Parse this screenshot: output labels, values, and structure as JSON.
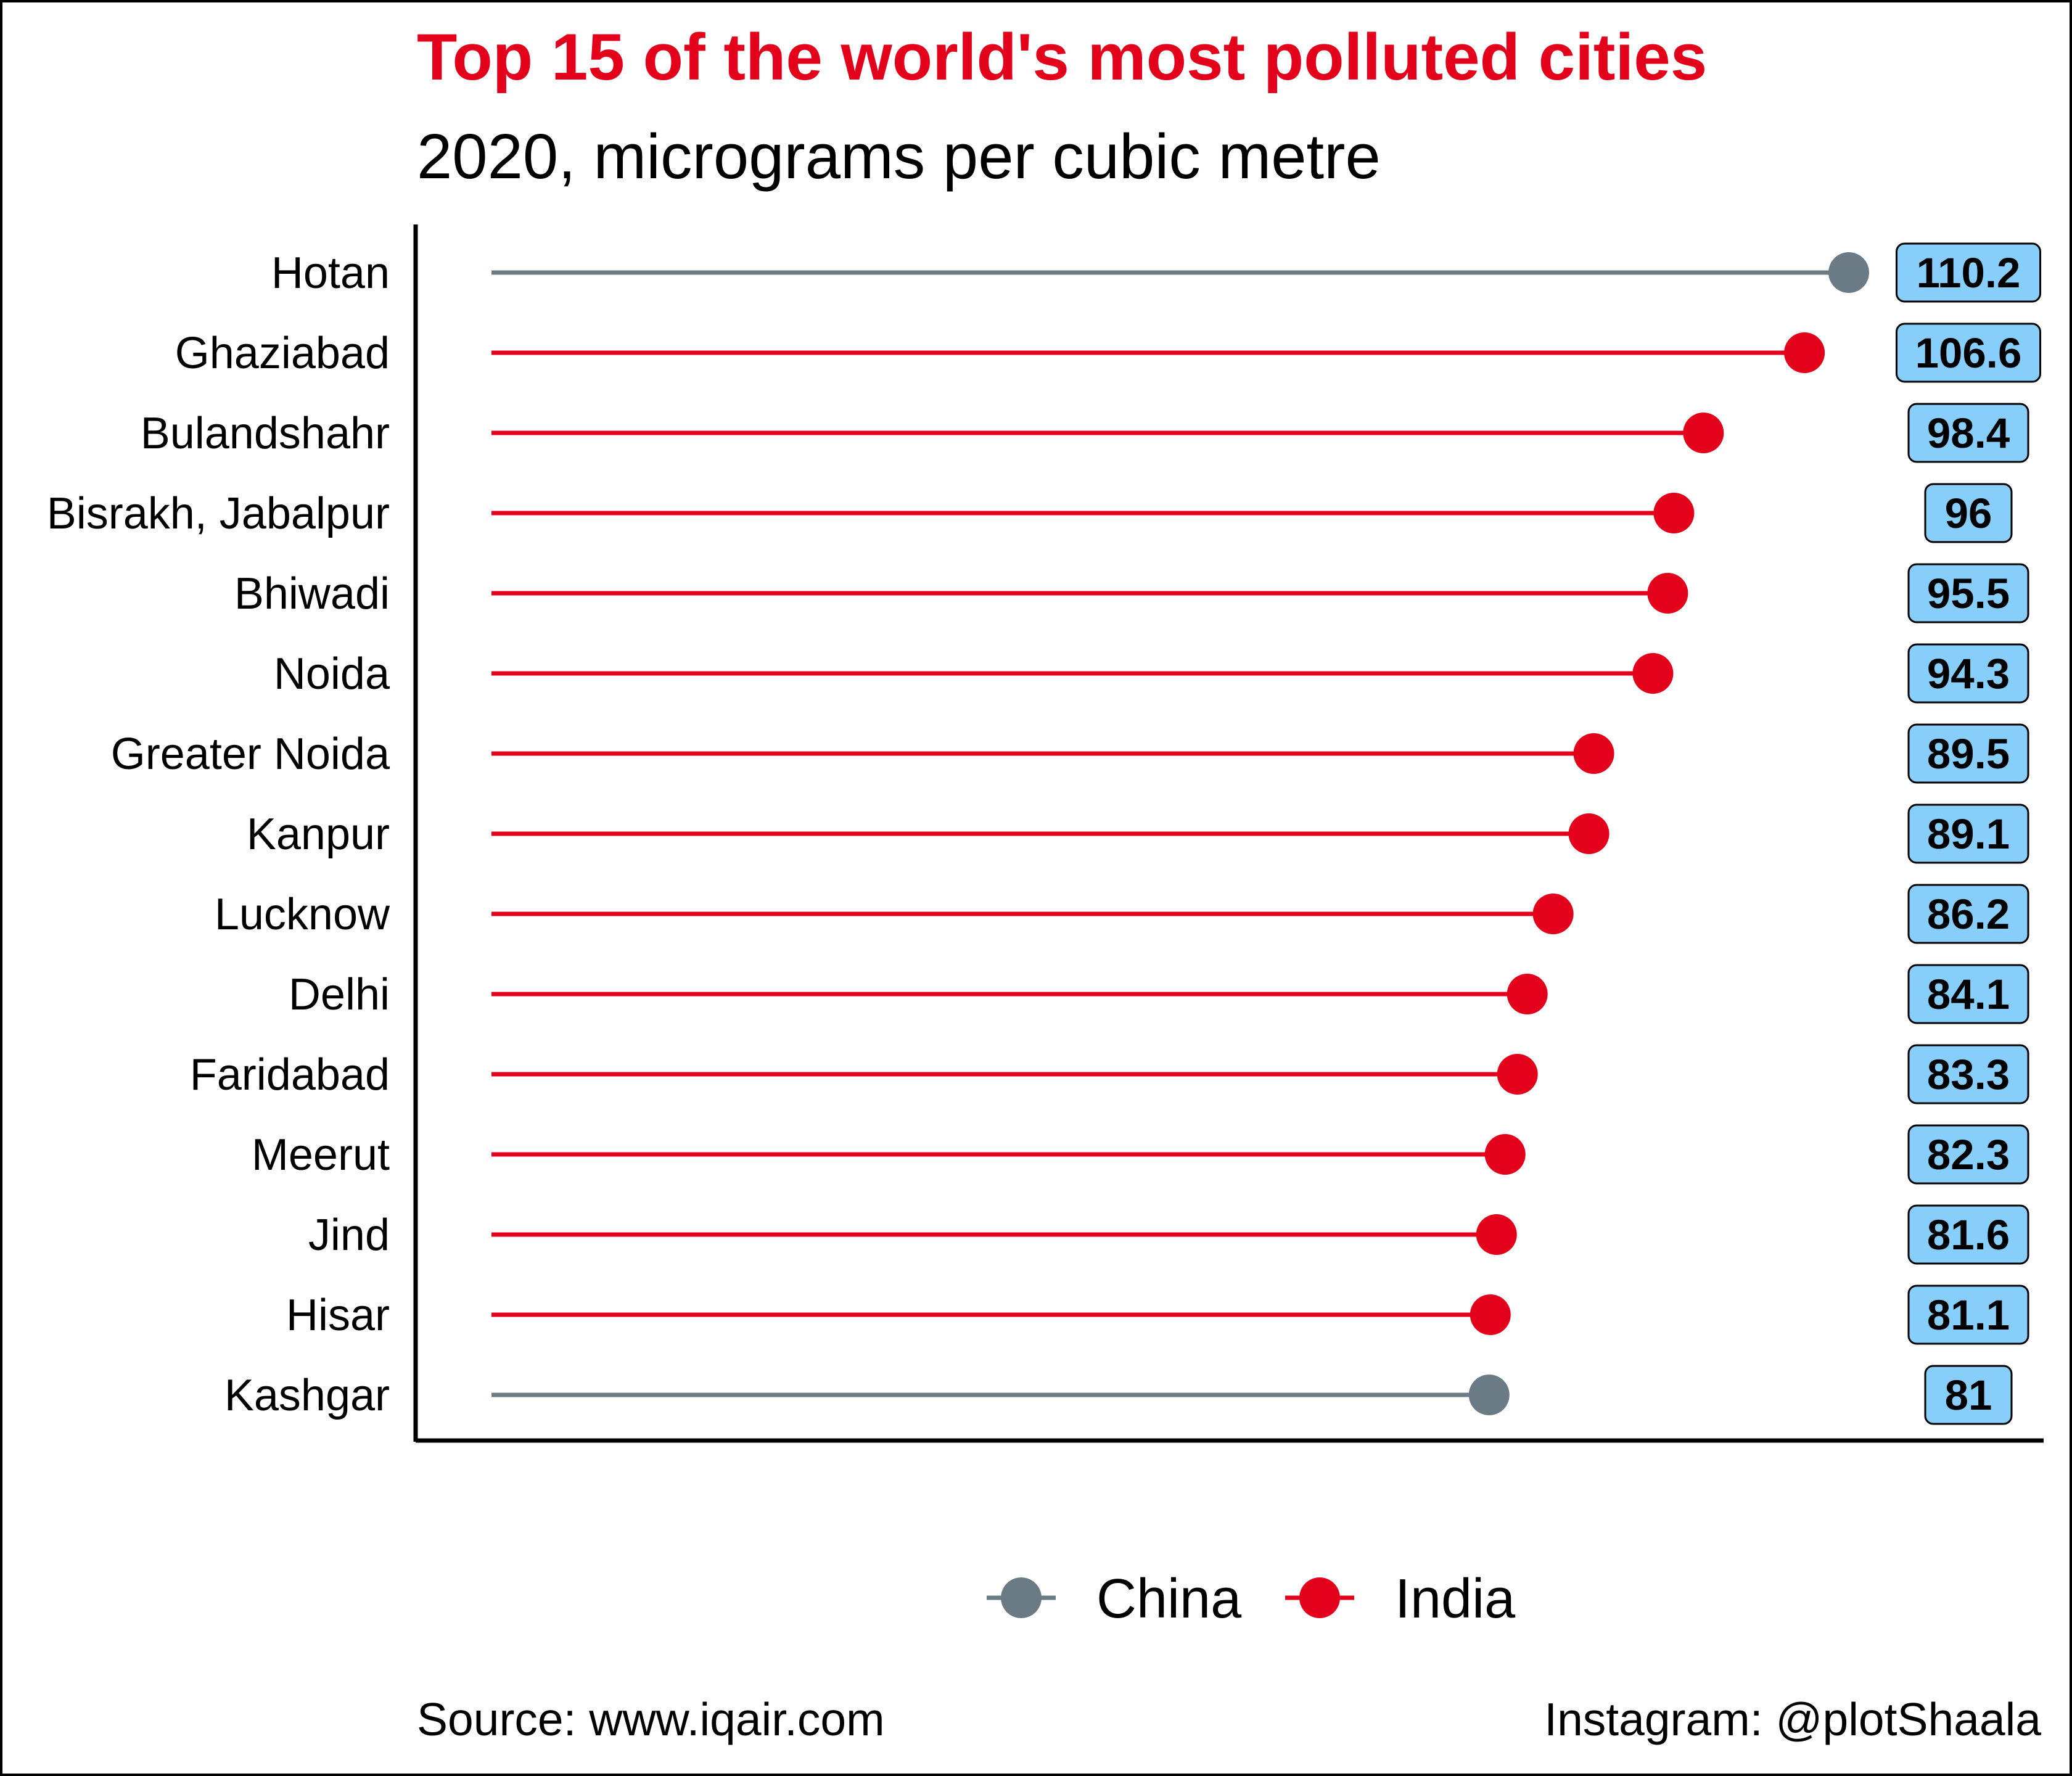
{
  "chart_data": {
    "type": "lollipop",
    "title": "Top 15 of the world's most polluted cities",
    "subtitle": "2020, micrograms per cubic metre",
    "categories": [
      "Hotan",
      "Ghaziabad",
      "Bulandshahr",
      "Bisrakh, Jabalpur",
      "Bhiwadi",
      "Noida",
      "Greater Noida",
      "Kanpur",
      "Lucknow",
      "Delhi",
      "Faridabad",
      "Meerut",
      "Jind",
      "Hisar",
      "Kashgar"
    ],
    "values": [
      110.2,
      106.6,
      98.4,
      96,
      95.5,
      94.3,
      89.5,
      89.1,
      86.2,
      84.1,
      83.3,
      82.3,
      81.6,
      81.1,
      81
    ],
    "value_labels": [
      "110.2",
      "106.6",
      "98.4",
      "96",
      "95.5",
      "94.3",
      "89.5",
      "89.1",
      "86.2",
      "84.1",
      "83.3",
      "82.3",
      "81.6",
      "81.1",
      "81"
    ],
    "country": [
      "China",
      "India",
      "India",
      "India",
      "India",
      "India",
      "India",
      "India",
      "India",
      "India",
      "India",
      "India",
      "India",
      "India",
      "China"
    ],
    "legend": {
      "position": "bottom",
      "items": [
        {
          "name": "China",
          "color": "#6a7b86"
        },
        {
          "name": "India",
          "color": "#e3001b"
        }
      ]
    },
    "xlim": [
      0,
      110.2
    ],
    "grid": false,
    "label_box_color": "#87cefa"
  },
  "colors": {
    "title": "#e3001b",
    "text": "#000000",
    "axis": "#000000"
  },
  "footer": {
    "source": "Source: www.iqair.com",
    "credit": "Instagram: @plotShaala"
  }
}
